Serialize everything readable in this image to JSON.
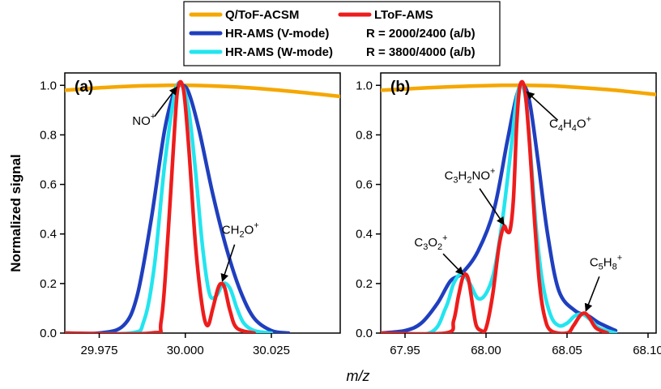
{
  "figure": {
    "xlabel": "m/z",
    "ylabel": "Normalized signal",
    "legend": {
      "placement": "top-center",
      "entries": [
        {
          "series": "Q/ToF-ACSM",
          "color": "#f5a700"
        },
        {
          "series": "LToF-AMS",
          "color": "#ee1c1c"
        },
        {
          "series": "HR-AMS (V-mode)",
          "color": "#1f3fbf"
        },
        {
          "series": "HR-AMS (W-mode)",
          "color": "#22e5ef"
        }
      ],
      "resolution_notes": [
        "R = 2000/2400 (a/b)",
        "R = 3800/4000 (a/b)"
      ]
    }
  },
  "chart_data": [
    {
      "type": "line",
      "panel_label": "(a)",
      "xlim": [
        29.965,
        30.045
      ],
      "ylim": [
        0,
        1.05
      ],
      "xticks": [
        "29.975",
        "30.000",
        "30.025"
      ],
      "xtick_values": [
        29.975,
        30.0,
        30.025
      ],
      "yticks": [
        "0.0",
        "0.2",
        "0.4",
        "0.6",
        "0.8",
        "1.0"
      ],
      "ytick_values": [
        0,
        0.2,
        0.4,
        0.6,
        0.8,
        1.0
      ],
      "grid": false,
      "series": [
        {
          "name": "Q/ToF-ACSM",
          "color": "#f5a700",
          "x": [
            29.965,
            29.975,
            29.985,
            29.995,
            29.998,
            30.005,
            30.015,
            30.025,
            30.035,
            30.045
          ],
          "y": [
            0.98,
            0.99,
            0.997,
            1.0,
            1.0,
            0.999,
            0.993,
            0.983,
            0.97,
            0.955
          ]
        },
        {
          "name": "HR-AMS (V-mode)",
          "color": "#1f3fbf",
          "x": [
            29.965,
            29.975,
            29.982,
            29.986,
            29.99,
            29.994,
            29.997,
            29.999,
            30.001,
            30.004,
            30.008,
            30.012,
            30.016,
            30.02,
            30.025,
            30.03
          ],
          "y": [
            0.0,
            0.0,
            0.03,
            0.15,
            0.45,
            0.82,
            0.98,
            1.0,
            0.97,
            0.82,
            0.56,
            0.34,
            0.17,
            0.06,
            0.01,
            0.0
          ]
        },
        {
          "name": "HR-AMS (W-mode)",
          "color": "#22e5ef",
          "x": [
            29.965,
            29.984,
            29.988,
            29.991,
            29.994,
            29.997,
            29.999,
            30.001,
            30.003,
            30.005,
            30.007,
            30.009,
            30.011,
            30.013,
            30.015,
            30.017,
            30.02,
            30.025
          ],
          "y": [
            0.0,
            0.0,
            0.05,
            0.27,
            0.68,
            0.97,
            1.0,
            0.9,
            0.65,
            0.35,
            0.16,
            0.15,
            0.2,
            0.18,
            0.1,
            0.04,
            0.01,
            0.0
          ]
        },
        {
          "name": "LToF-AMS",
          "color": "#ee1c1c",
          "x": [
            29.965,
            29.99,
            29.993,
            29.995,
            29.997,
            29.998,
            29.9995,
            30.001,
            30.003,
            30.005,
            30.0065,
            30.008,
            30.0095,
            30.0105,
            30.0115,
            30.013,
            30.015,
            30.02
          ],
          "y": [
            0.0,
            0.0,
            0.05,
            0.4,
            0.85,
            1.0,
            0.98,
            0.75,
            0.35,
            0.1,
            0.03,
            0.1,
            0.18,
            0.2,
            0.18,
            0.09,
            0.02,
            0.0
          ]
        }
      ],
      "annotations": [
        {
          "ion": "NO",
          "charge": "+",
          "at": [
            29.998,
            1.0
          ],
          "text_at": [
            29.988,
            0.84
          ]
        },
        {
          "ion": "CH",
          "sub": "2",
          "after": "O",
          "charge": "+",
          "at": [
            30.0105,
            0.2
          ],
          "text_at": [
            30.016,
            0.4
          ]
        }
      ]
    },
    {
      "type": "line",
      "panel_label": "(b)",
      "xlim": [
        67.935,
        68.105
      ],
      "ylim": [
        0,
        1.05
      ],
      "xticks": [
        "67.95",
        "68.00",
        "68.05",
        "68.10"
      ],
      "xtick_values": [
        67.95,
        68.0,
        68.05,
        68.1
      ],
      "yticks": [
        "0.0",
        "0.2",
        "0.4",
        "0.6",
        "0.8",
        "1.0"
      ],
      "ytick_values": [
        0,
        0.2,
        0.4,
        0.6,
        0.8,
        1.0
      ],
      "grid": false,
      "series": [
        {
          "name": "Q/ToF-ACSM",
          "color": "#f5a700",
          "x": [
            67.935,
            67.95,
            67.97,
            67.99,
            68.01,
            68.025,
            68.04,
            68.06,
            68.08,
            68.105
          ],
          "y": [
            0.98,
            0.985,
            0.992,
            0.997,
            1.0,
            1.0,
            0.998,
            0.99,
            0.98,
            0.963
          ]
        },
        {
          "name": "HR-AMS (V-mode)",
          "color": "#1f3fbf",
          "x": [
            67.935,
            67.95,
            67.96,
            67.97,
            67.978,
            67.985,
            67.995,
            68.005,
            68.013,
            68.019,
            68.023,
            68.027,
            68.032,
            68.038,
            68.045,
            68.055,
            68.063,
            68.07,
            68.08
          ],
          "y": [
            0.0,
            0.01,
            0.04,
            0.12,
            0.21,
            0.24,
            0.33,
            0.5,
            0.77,
            0.96,
            1.0,
            0.93,
            0.7,
            0.4,
            0.17,
            0.09,
            0.07,
            0.04,
            0.01
          ]
        },
        {
          "name": "HR-AMS (W-mode)",
          "color": "#22e5ef",
          "x": [
            67.935,
            67.965,
            67.975,
            67.98,
            67.985,
            67.99,
            67.995,
            68.0,
            68.005,
            68.01,
            68.015,
            68.019,
            68.022,
            68.025,
            68.028,
            68.031,
            68.035,
            68.04,
            68.045,
            68.05,
            68.055,
            68.06,
            68.065,
            68.07,
            68.08
          ],
          "y": [
            0.0,
            0.0,
            0.1,
            0.2,
            0.24,
            0.2,
            0.14,
            0.16,
            0.25,
            0.45,
            0.72,
            0.95,
            1.0,
            0.92,
            0.68,
            0.42,
            0.2,
            0.07,
            0.03,
            0.04,
            0.07,
            0.075,
            0.05,
            0.02,
            0.0
          ]
        },
        {
          "name": "LToF-AMS",
          "color": "#ee1c1c",
          "x": [
            67.935,
            67.975,
            67.98,
            67.983,
            67.986,
            67.989,
            67.992,
            67.994,
            67.997,
            68.0,
            68.004,
            68.008,
            68.011,
            68.013,
            68.015,
            68.017,
            68.019,
            68.021,
            68.024,
            68.027,
            68.03,
            68.033,
            68.036,
            68.04,
            68.05,
            68.054,
            68.058,
            68.061,
            68.064,
            68.068,
            68.075
          ],
          "y": [
            0.0,
            0.0,
            0.05,
            0.15,
            0.23,
            0.22,
            0.1,
            0.03,
            0.01,
            0.02,
            0.15,
            0.35,
            0.43,
            0.41,
            0.42,
            0.55,
            0.85,
            1.0,
            0.98,
            0.75,
            0.45,
            0.2,
            0.07,
            0.01,
            0.0,
            0.03,
            0.07,
            0.08,
            0.06,
            0.02,
            0.0
          ]
        }
      ],
      "annotations": [
        {
          "ion": "C",
          "sub": "3",
          "after": "O",
          "sub2": "2",
          "charge": "+",
          "at": [
            67.987,
            0.23
          ],
          "text_at": [
            67.966,
            0.35
          ]
        },
        {
          "ion": "C",
          "sub": "3",
          "after": "H",
          "sub2": "2",
          "after2": "NO",
          "charge": "+",
          "at": [
            68.012,
            0.43
          ],
          "text_at": [
            67.99,
            0.62
          ]
        },
        {
          "ion": "C",
          "sub": "4",
          "after": "H",
          "sub2": "4",
          "after2": "O",
          "charge": "+",
          "at": [
            68.024,
            0.98
          ],
          "text_at": [
            68.052,
            0.83
          ]
        },
        {
          "ion": "C",
          "sub": "5",
          "after": "H",
          "sub2": "8",
          "charge": "+",
          "at": [
            68.061,
            0.08
          ],
          "text_at": [
            68.074,
            0.27
          ]
        }
      ]
    }
  ]
}
